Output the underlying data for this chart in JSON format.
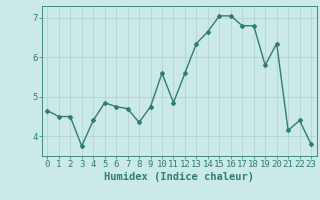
{
  "xlabel": "Humidex (Indice chaleur)",
  "ylabel": "",
  "x_values": [
    0,
    1,
    2,
    3,
    4,
    5,
    6,
    7,
    8,
    9,
    10,
    11,
    12,
    13,
    14,
    15,
    16,
    17,
    18,
    19,
    20,
    21,
    22,
    23
  ],
  "y_values": [
    4.65,
    4.5,
    4.5,
    3.75,
    4.4,
    4.85,
    4.75,
    4.7,
    4.35,
    4.75,
    5.6,
    4.85,
    5.6,
    6.35,
    6.65,
    7.05,
    7.05,
    6.8,
    6.8,
    5.8,
    6.35,
    4.15,
    4.4,
    3.8
  ],
  "line_color": "#2e7d6e",
  "marker": "D",
  "marker_size": 2.0,
  "line_width": 1.0,
  "bg_color": "#cce9e9",
  "grid_color": "#b0cfcf",
  "tick_color": "#2e7d6e",
  "label_color": "#2e7d6e",
  "ylim": [
    3.5,
    7.3
  ],
  "yticks": [
    4,
    5,
    6,
    7
  ],
  "xticks": [
    0,
    1,
    2,
    3,
    4,
    5,
    6,
    7,
    8,
    9,
    10,
    11,
    12,
    13,
    14,
    15,
    16,
    17,
    18,
    19,
    20,
    21,
    22,
    23
  ],
  "xlabel_fontsize": 7.5,
  "tick_fontsize": 6.5
}
